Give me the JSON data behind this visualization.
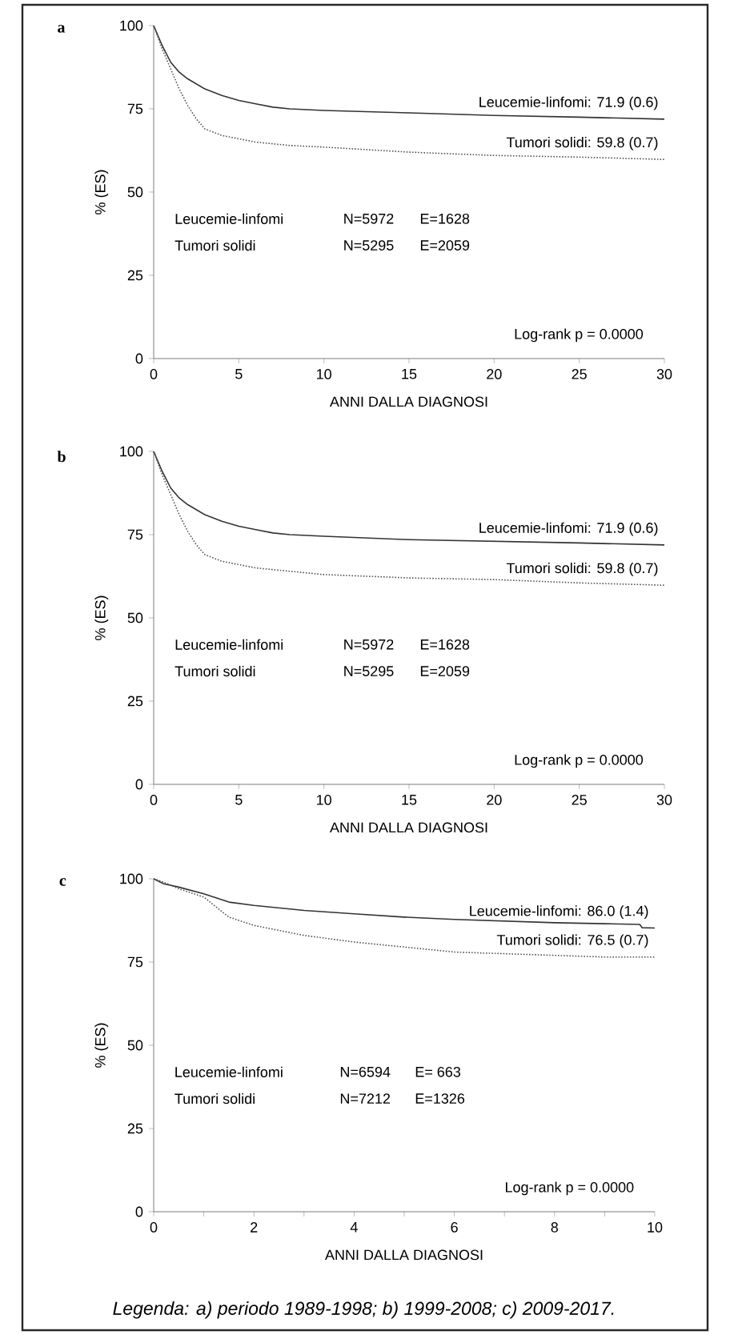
{
  "chart_data": [
    {
      "type": "line",
      "title": "a",
      "xlabel": "ANNI DALLA DIAGNOSI",
      "ylabel": "% (ES)",
      "xlim": [
        0,
        30
      ],
      "ylim": [
        0,
        100
      ],
      "xticks": [
        0,
        5,
        10,
        15,
        20,
        25,
        30
      ],
      "yticks": [
        0,
        25,
        50,
        75,
        100
      ],
      "x": [
        0,
        0.5,
        1,
        1.5,
        2,
        2.5,
        3,
        4,
        5,
        6,
        7,
        8,
        10,
        15,
        20,
        25,
        30
      ],
      "series": [
        {
          "name": "Leucemie-linfomi: 71.9 (0.6)",
          "color": "#333333",
          "line_style": "solid",
          "values": [
            100,
            94,
            89,
            86,
            84,
            82.5,
            81,
            79,
            77.5,
            76.5,
            75.5,
            75,
            74.5,
            73.8,
            73,
            72.5,
            71.9
          ]
        },
        {
          "name": "Tumori solidi: 59.8 (0.7)",
          "color": "#555555",
          "line_style": "dotted",
          "values": [
            100,
            93,
            87,
            81,
            76,
            72,
            69,
            67,
            66,
            65,
            64.5,
            64,
            63.5,
            62,
            61,
            60.5,
            59.8
          ]
        }
      ],
      "annotations": [
        "Leucemie-linfomi",
        "N=5972",
        "E=1628",
        "Tumori solidi",
        "N=5295",
        "E=2059",
        "Log-rank p = 0.0000"
      ]
    },
    {
      "type": "line",
      "title": "b",
      "xlabel": "ANNI DALLA DIAGNOSI",
      "ylabel": "% (ES)",
      "xlim": [
        0,
        30
      ],
      "ylim": [
        0,
        100
      ],
      "xticks": [
        0,
        5,
        10,
        15,
        20,
        25,
        30
      ],
      "yticks": [
        0,
        25,
        50,
        75,
        100
      ],
      "x": [
        0,
        0.5,
        1,
        1.5,
        2,
        2.5,
        3,
        4,
        5,
        6,
        7,
        8,
        10,
        15,
        20,
        25,
        30
      ],
      "series": [
        {
          "name": "Leucemie-linfomi: 71.9 (0.6)",
          "color": "#333333",
          "line_style": "solid",
          "values": [
            100,
            94,
            89,
            86,
            84,
            82.5,
            81,
            79,
            77.5,
            76.5,
            75.5,
            75,
            74.5,
            73.5,
            73,
            72.5,
            71.9
          ]
        },
        {
          "name": "Tumori solidi: 59.8 (0.7)",
          "color": "#555555",
          "line_style": "dotted",
          "values": [
            100,
            93,
            87,
            81,
            76,
            72,
            69,
            67,
            66,
            65,
            64.5,
            64,
            63,
            62,
            61.5,
            60.5,
            59.8
          ]
        }
      ],
      "annotations": [
        "Leucemie-linfomi",
        "N=5972",
        "E=1628",
        "Tumori solidi",
        "N=5295",
        "E=2059",
        "Log-rank p = 0.0000"
      ]
    },
    {
      "type": "line",
      "title": "c",
      "xlabel": "ANNI DALLA DIAGNOSI",
      "ylabel": "% (ES)",
      "xlim": [
        0,
        10
      ],
      "ylim": [
        0,
        100
      ],
      "xticks": [
        0,
        {
          "value": 1,
          "label": null
        },
        2,
        {
          "value": 3,
          "label": null
        },
        4,
        {
          "value": 5,
          "label": null
        },
        6,
        {
          "value": 7,
          "label": null
        },
        8,
        {
          "value": 9,
          "label": null
        },
        10
      ],
      "yticks": [
        0,
        25,
        50,
        75,
        100
      ],
      "x": [
        0,
        0.2,
        0.5,
        1,
        1.5,
        2,
        3,
        4,
        5,
        6,
        7,
        8,
        9,
        9.7,
        9.75,
        10
      ],
      "series": [
        {
          "name": "Leucemie-linfomi: 86.0 (1.4)",
          "color": "#333333",
          "line_style": "solid",
          "values": [
            100,
            98.5,
            97.5,
            95.5,
            93,
            92,
            90.5,
            89.5,
            88.5,
            87.8,
            87.3,
            86.8,
            86.5,
            86.3,
            85.3,
            85.2
          ]
        },
        {
          "name": "Tumori solidi: 76.5 (0.7)",
          "color": "#555555",
          "line_style": "dotted",
          "values": [
            100,
            99,
            97,
            94.5,
            88.5,
            86,
            83,
            81,
            79.5,
            78,
            77.5,
            77,
            76.5,
            76.5,
            76.5,
            76.5
          ]
        }
      ],
      "annotations": [
        "Leucemie-linfomi",
        "N=6594",
        "E=  663",
        "Tumori solidi",
        "N=7212",
        "E=1326",
        "Log-rank p = 0.0000",
        "Legenda: a) periodo 1989-1998; b) 1999-2008; c) 2009-2017."
      ]
    }
  ]
}
